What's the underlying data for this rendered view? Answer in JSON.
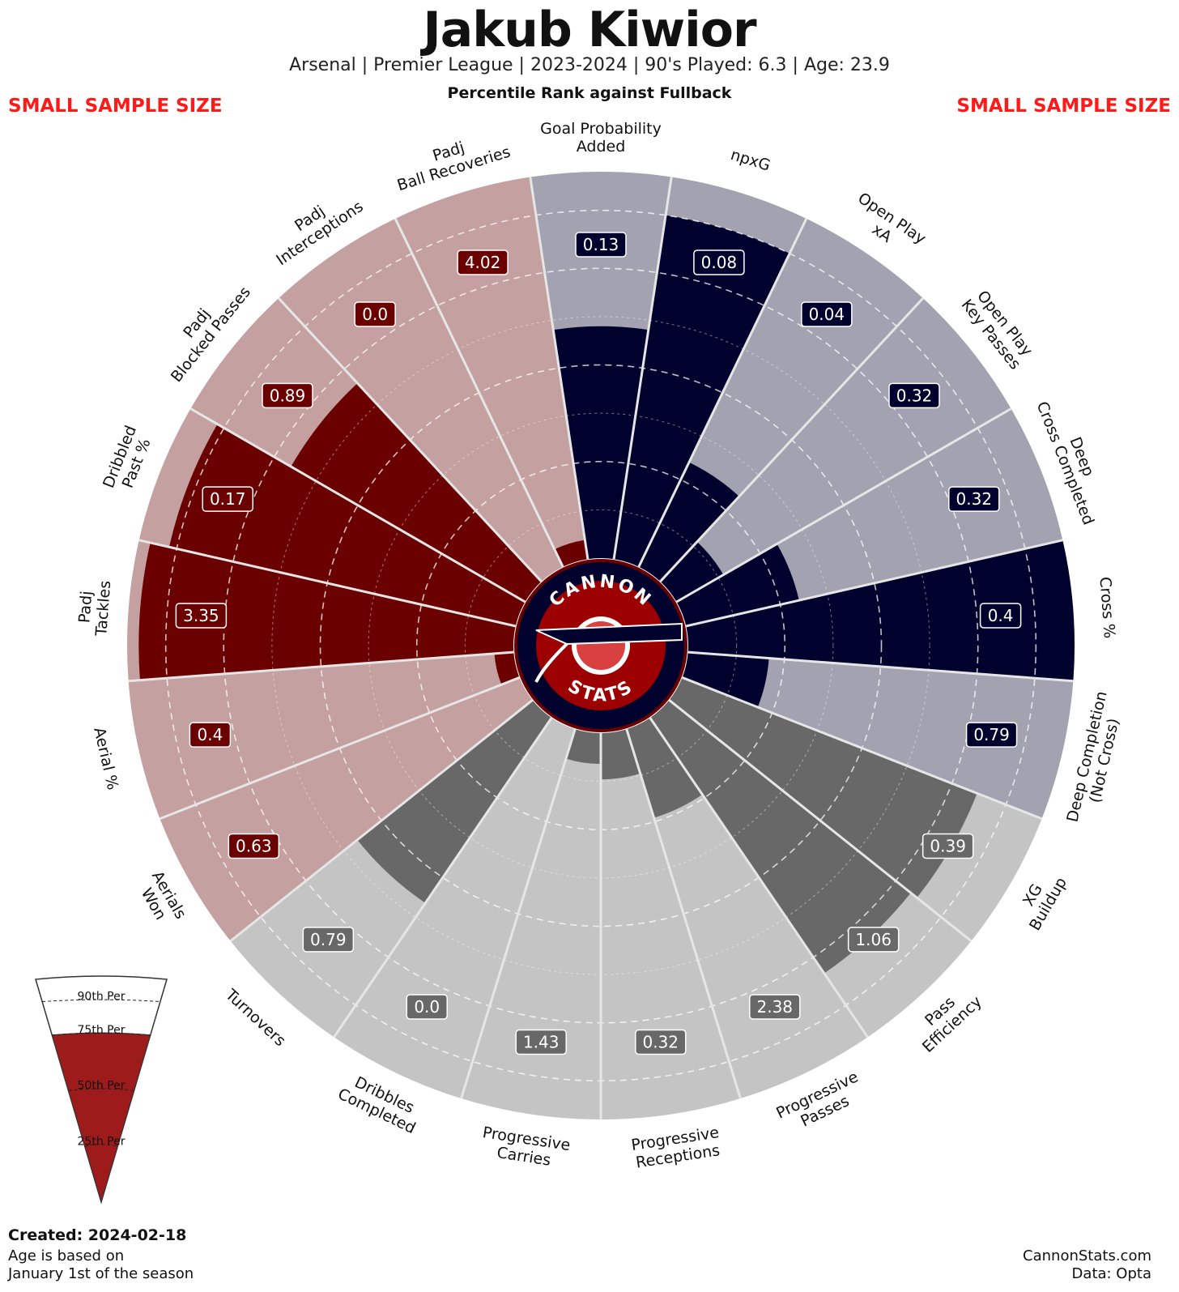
{
  "header": {
    "title": "Jakub Kiwior",
    "subtitle": "Arsenal  | Premier League | 2023-2024 | 90's Played: 6.3 | Age: 23.9",
    "subtitle2": "Percentile Rank against Fullback",
    "warning_left": "SMALL SAMPLE SIZE",
    "warning_right": "SMALL SAMPLE SIZE"
  },
  "footer": {
    "created": "Created: 2024-02-18",
    "age_note_1": "Age is based on",
    "age_note_2": "January 1st of the season",
    "site": "CannonStats.com",
    "data_source": "Data: Opta"
  },
  "logo": {
    "top_text": "CANNON",
    "bottom_text": "STATS"
  },
  "legend": {
    "labels": [
      "90th Per",
      "75th Per",
      "50th Per",
      "25th Per"
    ],
    "fill_level": 0.75
  },
  "colors": {
    "defense": "#6b0000",
    "defense_bg": "#c4a0a0",
    "attack": "#01012d",
    "attack_bg": "#a2a2b0",
    "possession": "#686868",
    "possession_bg": "#c4c4c4",
    "warning": "#ff1a1a",
    "legend_fill": "#9d1b1b"
  },
  "chart_data": {
    "type": "radar",
    "scale": "percentile",
    "range": [
      0,
      100
    ],
    "gridlines": [
      25,
      50,
      75,
      90
    ],
    "categories": [
      {
        "label": "Goal Probability\nAdded",
        "value": "0.13",
        "percentile": 60,
        "group": "attack"
      },
      {
        "label": "npxG",
        "value": "0.08",
        "percentile": 90,
        "group": "attack"
      },
      {
        "label": "Open Play\nxA",
        "value": "0.04",
        "percentile": 30,
        "group": "attack"
      },
      {
        "label": "Open Play\nKey Passes",
        "value": "0.32",
        "percentile": 14,
        "group": "attack"
      },
      {
        "label": "Deep\nCross Completed",
        "value": "0.32",
        "percentile": 30,
        "group": "attack"
      },
      {
        "label": "Cross %",
        "value": "0.4",
        "percentile": 100,
        "group": "attack"
      },
      {
        "label": "Deep Completion\n(Not Cross)",
        "value": "0.79",
        "percentile": 21,
        "group": "attack"
      },
      {
        "label": "XG\nBuildup",
        "value": "0.39",
        "percentile": 82,
        "group": "possession"
      },
      {
        "label": "Pass\nEfficiency",
        "value": "1.06",
        "percentile": 80,
        "group": "possession"
      },
      {
        "label": "Progressive\nPasses",
        "value": "2.38",
        "percentile": 24,
        "group": "possession"
      },
      {
        "label": "Progressive\nReceptions",
        "value": "0.32",
        "percentile": 12,
        "group": "possession"
      },
      {
        "label": "Progressive\nCarries",
        "value": "1.43",
        "percentile": 8,
        "group": "possession"
      },
      {
        "label": "Dribbles\nCompleted",
        "value": "0.0",
        "percentile": 0,
        "group": "possession"
      },
      {
        "label": "Turnovers",
        "value": "0.79",
        "percentile": 58,
        "group": "possession"
      },
      {
        "label": "Aerials\nWon",
        "value": "0.63",
        "percentile": 0,
        "group": "defense"
      },
      {
        "label": "Aerial %",
        "value": "0.4",
        "percentile": 5,
        "group": "defense"
      },
      {
        "label": "Padj\nTackles",
        "value": "3.35",
        "percentile": 97,
        "group": "defense"
      },
      {
        "label": "Dribbled\nPast %",
        "value": "0.17",
        "percentile": 92,
        "group": "defense"
      },
      {
        "label": "Padj\nBlocked Passes",
        "value": "0.89",
        "percentile": 70,
        "group": "defense"
      },
      {
        "label": "Padj\nInterceptions",
        "value": "0.0",
        "percentile": 0,
        "group": "defense"
      },
      {
        "label": "Padj\nBall Recoveries",
        "value": "4.02",
        "percentile": 5,
        "group": "defense"
      }
    ]
  }
}
